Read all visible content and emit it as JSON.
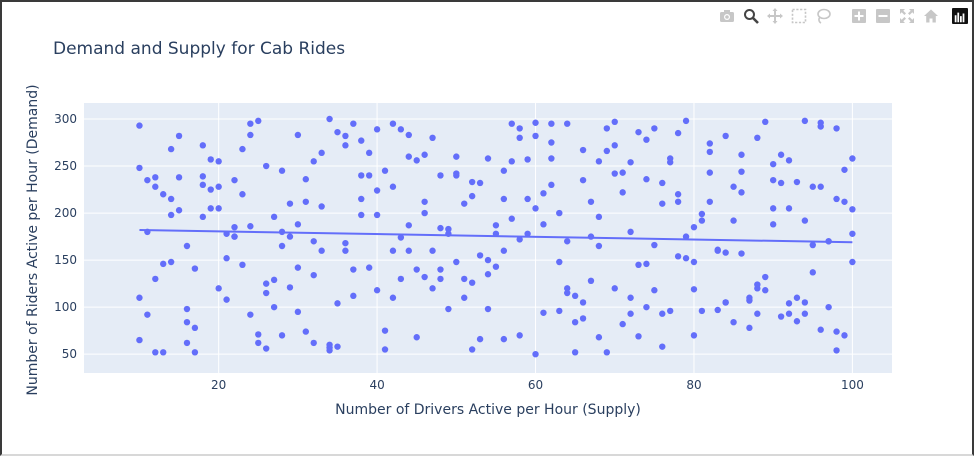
{
  "modebar": {
    "buttons": [
      {
        "name": "camera-icon",
        "color": "#c7c7c7"
      },
      {
        "name": "zoom-icon",
        "color": "#444444"
      },
      {
        "name": "pan-icon",
        "color": "#c7c7c7"
      },
      {
        "name": "box-select-icon",
        "color": "#c7c7c7"
      },
      {
        "name": "lasso-select-icon",
        "color": "#c7c7c7"
      },
      {
        "name": "zoom-in-icon",
        "color": "#c7c7c7"
      },
      {
        "name": "zoom-out-icon",
        "color": "#c7c7c7"
      },
      {
        "name": "autoscale-icon",
        "color": "#c7c7c7"
      },
      {
        "name": "reset-axes-icon",
        "color": "#c7c7c7"
      }
    ]
  },
  "chart_data": {
    "type": "scatter",
    "title": "Demand and Supply for Cab Rides",
    "xlabel": "Number of Drivers Active per Hour (Supply)",
    "ylabel": "Number of Riders Active per Hour (Demand)",
    "xlim": [
      3,
      105
    ],
    "ylim": [
      30,
      317
    ],
    "x_ticks": [
      20,
      40,
      60,
      80,
      100
    ],
    "y_ticks": [
      50,
      100,
      150,
      200,
      250,
      300
    ],
    "grid": true,
    "legend": "none",
    "colors": {
      "points": "#636efa",
      "trendline": "#636efa",
      "plot_bg": "#e5ecf6",
      "grid": "#ffffff"
    },
    "trendline": {
      "x": [
        10,
        100
      ],
      "y": [
        182,
        169
      ]
    },
    "points": {
      "x": [
        10,
        12,
        14,
        16,
        18,
        20,
        22,
        24,
        26,
        28,
        30,
        32,
        34,
        36,
        38,
        40,
        42,
        44,
        46,
        48,
        50,
        52,
        54,
        56,
        58,
        60,
        62,
        64,
        66,
        68,
        70,
        72,
        74,
        76,
        78,
        80,
        82,
        84,
        86,
        88,
        90,
        92,
        94,
        96,
        98,
        100,
        10,
        12,
        14,
        16,
        18,
        20,
        22,
        24,
        26,
        28,
        30,
        32,
        34,
        36,
        38,
        40,
        42,
        44,
        46,
        48,
        50,
        52,
        54,
        56,
        58,
        60,
        62,
        64,
        66,
        68,
        70,
        72,
        74,
        76,
        78,
        80,
        82,
        84,
        86,
        88,
        90,
        92,
        94,
        96,
        98,
        100,
        11,
        13,
        15,
        17,
        19,
        21,
        23,
        25,
        27,
        29,
        31,
        33,
        35,
        37,
        39,
        41,
        43,
        45,
        47,
        49,
        51,
        53,
        55,
        57,
        59,
        61,
        63,
        65,
        67,
        69,
        71,
        73,
        75,
        77,
        79,
        81,
        83,
        85,
        87,
        89,
        91,
        93,
        95,
        97,
        99,
        11,
        13,
        15,
        17,
        19,
        21,
        23,
        25,
        27,
        29,
        31,
        33,
        35,
        37,
        39,
        41,
        43,
        45,
        47,
        49,
        51,
        53,
        55,
        57,
        59,
        61,
        63,
        65,
        67,
        69,
        71,
        73,
        75,
        77,
        79,
        81,
        83,
        85,
        87,
        89,
        91,
        93,
        95,
        97,
        99,
        10,
        13,
        16,
        19,
        22,
        25,
        28,
        31,
        34,
        37,
        40,
        43,
        46,
        49,
        52,
        55,
        58,
        61,
        64,
        67,
        70,
        73,
        76,
        79,
        82,
        85,
        88,
        91,
        94,
        97,
        100,
        12,
        15,
        18,
        21,
        24,
        27,
        30,
        33,
        36,
        39,
        42,
        45,
        48,
        51,
        54,
        57,
        60,
        63,
        66,
        69,
        72,
        75,
        78,
        81,
        84,
        87,
        90,
        93,
        96,
        99,
        11,
        14,
        17,
        20,
        23,
        26,
        29,
        32,
        35,
        38,
        41,
        44,
        47,
        50,
        53,
        56,
        59,
        62,
        65,
        68,
        71,
        74,
        77,
        80,
        83,
        86,
        89,
        92,
        95,
        98,
        10,
        14,
        18,
        22,
        26,
        30,
        34,
        38,
        42,
        46,
        50,
        54,
        58,
        62,
        66,
        70,
        74,
        78,
        82,
        86,
        90,
        94,
        98,
        12,
        16,
        20,
        24,
        28,
        32,
        36,
        40,
        44,
        48,
        52,
        56,
        60,
        64,
        68,
        72,
        76,
        80,
        84,
        88,
        92,
        96,
        100
      ],
      "y": [
        293,
        228,
        268,
        62,
        272,
        120,
        235,
        295,
        250,
        180,
        283,
        62,
        300,
        272,
        240,
        118,
        295,
        283,
        212,
        140,
        260,
        233,
        150,
        245,
        290,
        282,
        258,
        295,
        88,
        165,
        272,
        93,
        146,
        232,
        220,
        185,
        243,
        158,
        262,
        120,
        252,
        93,
        298,
        292,
        215,
        258,
        110,
        238,
        148,
        98,
        196,
        255,
        185,
        283,
        56,
        165,
        95,
        170,
        54,
        160,
        277,
        289,
        110,
        160,
        200,
        130,
        240,
        55,
        98,
        66,
        70,
        296,
        275,
        115,
        267,
        255,
        297,
        110,
        278,
        93,
        212,
        148,
        274,
        105,
        244,
        93,
        235,
        104,
        93,
        228,
        290,
        148,
        235,
        52,
        238,
        141,
        225,
        108,
        268,
        62,
        196,
        210,
        74,
        160,
        286,
        112,
        264,
        245,
        174,
        140,
        280,
        183,
        210,
        155,
        178,
        194,
        215,
        221,
        200,
        84,
        175,
        266,
        222,
        145,
        290,
        96,
        152,
        192,
        161,
        228,
        110,
        132,
        90,
        85,
        228,
        170,
        246,
        180,
        146,
        282,
        52,
        205,
        152,
        220,
        71,
        129,
        121,
        236,
        207,
        58,
        295,
        240,
        75,
        130,
        68,
        160,
        98,
        130,
        232,
        187,
        295,
        257,
        94,
        96,
        112,
        128,
        52,
        243,
        69,
        118,
        258,
        298,
        96,
        160,
        84,
        78,
        297,
        232,
        233,
        137,
        100,
        70,
        248,
        220,
        165,
        257,
        175,
        298,
        245,
        212,
        57,
        140,
        198,
        289,
        132,
        178,
        218,
        143,
        172,
        188,
        170,
        212,
        242,
        286,
        58,
        175,
        212,
        192,
        280,
        262,
        192,
        170,
        204,
        130,
        203,
        239,
        178,
        92,
        100,
        188,
        264,
        282,
        142,
        160,
        256,
        184,
        110,
        135,
        255,
        50,
        148,
        235,
        290,
        180,
        166,
        285,
        199,
        282,
        107,
        205,
        110,
        76,
        212,
        92,
        198,
        78,
        205,
        145,
        125,
        175,
        255,
        104,
        215,
        55,
        187,
        120,
        242,
        66,
        215,
        178,
        230,
        52,
        68,
        82,
        100,
        254,
        119,
        97,
        157,
        118,
        205,
        166,
        74,
        65,
        215,
        230,
        175,
        115,
        142,
        60,
        198,
        228,
        262,
        148,
        258,
        280,
        295,
        105,
        120,
        236,
        154,
        265,
        222,
        188,
        105,
        54,
        52,
        84,
        228,
        186,
        70,
        134,
        168,
        224,
        260,
        240,
        126,
        160,
        205,
        120,
        196,
        254,
        210,
        70,
        105,
        124,
        256,
        296,
        178
      ]
    }
  }
}
